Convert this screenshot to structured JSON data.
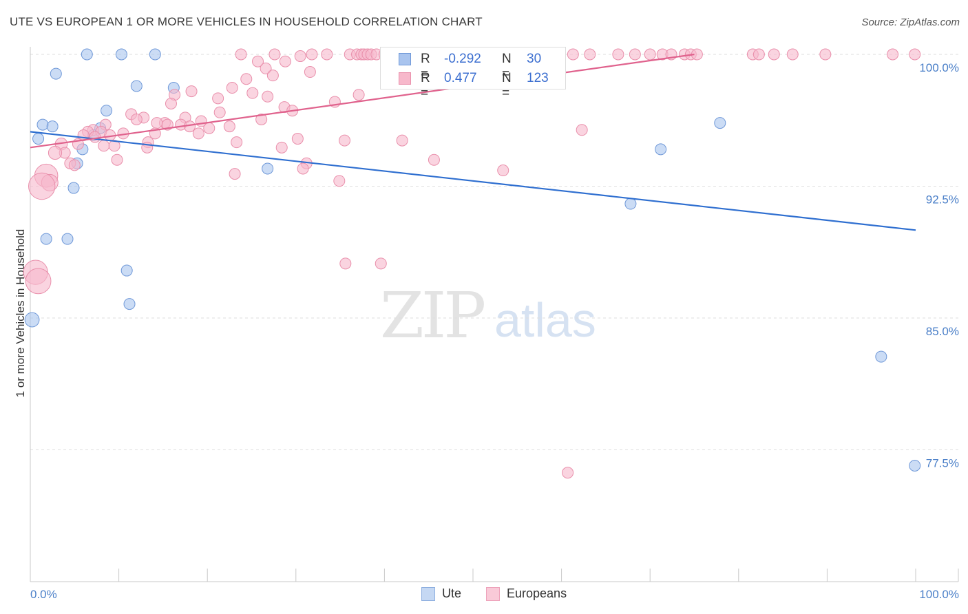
{
  "title": "UTE VS EUROPEAN 1 OR MORE VEHICLES IN HOUSEHOLD CORRELATION CHART",
  "source": "Source: ZipAtlas.com",
  "watermark": {
    "part1": "ZIP",
    "part2": "atlas"
  },
  "legend": {
    "rows": [
      {
        "r_label": "R =",
        "r_value": "-0.292",
        "n_label": "N =",
        "n_value": "30",
        "fill": "#a9c4ee",
        "stroke": "#6f98d8"
      },
      {
        "r_label": "R =",
        "r_value": "0.477",
        "n_label": "N =",
        "n_value": "123",
        "fill": "#f7b8cb",
        "stroke": "#e98fab"
      }
    ]
  },
  "bottom_legend": [
    {
      "label": "Ute",
      "fill": "#c5d8f3",
      "stroke": "#8fb0e0"
    },
    {
      "label": "Europeans",
      "fill": "#f9cad8",
      "stroke": "#eea3bb"
    }
  ],
  "chart_data": {
    "type": "scatter",
    "title": "UTE VS EUROPEAN 1 OR MORE VEHICLES IN HOUSEHOLD CORRELATION CHART",
    "xlabel": "",
    "ylabel": "1 or more Vehicles in Household",
    "xlim": [
      0,
      100
    ],
    "ylim": [
      70,
      100.6
    ],
    "x_tick_labels": [
      "0.0%",
      "100.0%"
    ],
    "y_ticks": [
      {
        "value": 100.0,
        "label": "100.0%"
      },
      {
        "value": 92.5,
        "label": "92.5%"
      },
      {
        "value": 85.0,
        "label": "85.0%"
      },
      {
        "value": 77.5,
        "label": "77.5%"
      }
    ],
    "grid": true,
    "legend_position": "top-center",
    "series": [
      {
        "name": "Ute",
        "fill": "#a9c4ee",
        "stroke": "#6f98d8",
        "trend": {
          "x": [
            0,
            100
          ],
          "y": [
            95.6,
            90.0
          ],
          "color": "#2f6fd0"
        },
        "points": [
          {
            "x": 6.4,
            "y": 100.0,
            "s": 1
          },
          {
            "x": 10.3,
            "y": 100.0,
            "s": 1
          },
          {
            "x": 14.1,
            "y": 100.0,
            "s": 1
          },
          {
            "x": 2.9,
            "y": 98.9,
            "s": 1
          },
          {
            "x": 12.0,
            "y": 98.2,
            "s": 1
          },
          {
            "x": 16.2,
            "y": 98.1,
            "s": 1
          },
          {
            "x": 8.6,
            "y": 96.8,
            "s": 1
          },
          {
            "x": 1.4,
            "y": 96.0,
            "s": 1
          },
          {
            "x": 2.5,
            "y": 95.9,
            "s": 1
          },
          {
            "x": 7.9,
            "y": 95.8,
            "s": 1
          },
          {
            "x": 7.1,
            "y": 95.4,
            "s": 1
          },
          {
            "x": 0.9,
            "y": 95.2,
            "s": 1
          },
          {
            "x": 5.9,
            "y": 94.6,
            "s": 1
          },
          {
            "x": 5.3,
            "y": 93.8,
            "s": 1
          },
          {
            "x": 26.8,
            "y": 93.5,
            "s": 1
          },
          {
            "x": 4.9,
            "y": 92.4,
            "s": 1
          },
          {
            "x": 1.8,
            "y": 89.5,
            "s": 1
          },
          {
            "x": 4.2,
            "y": 89.5,
            "s": 1
          },
          {
            "x": 10.9,
            "y": 87.7,
            "s": 1
          },
          {
            "x": 11.2,
            "y": 85.8,
            "s": 1
          },
          {
            "x": 0.2,
            "y": 84.9,
            "s": 1.3
          },
          {
            "x": 77.9,
            "y": 96.1,
            "s": 1
          },
          {
            "x": 71.2,
            "y": 94.6,
            "s": 1
          },
          {
            "x": 67.8,
            "y": 91.5,
            "s": 1
          },
          {
            "x": 96.1,
            "y": 82.8,
            "s": 1
          },
          {
            "x": 99.9,
            "y": 76.6,
            "s": 1
          }
        ]
      },
      {
        "name": "Europeans",
        "fill": "#f7b8cb",
        "stroke": "#e98fab",
        "trend": {
          "x": [
            0,
            75
          ],
          "y": [
            94.7,
            100.0
          ],
          "color": "#e0628d"
        },
        "points": [
          {
            "x": 23.8,
            "y": 100.0,
            "s": 1
          },
          {
            "x": 27.6,
            "y": 100.0,
            "s": 1
          },
          {
            "x": 30.5,
            "y": 99.9,
            "s": 1
          },
          {
            "x": 31.8,
            "y": 100.0,
            "s": 1
          },
          {
            "x": 33.5,
            "y": 100.0,
            "s": 1
          },
          {
            "x": 36.1,
            "y": 100.0,
            "s": 1
          },
          {
            "x": 36.9,
            "y": 100.0,
            "s": 1
          },
          {
            "x": 37.4,
            "y": 100.0,
            "s": 1
          },
          {
            "x": 37.7,
            "y": 100.0,
            "s": 1
          },
          {
            "x": 38.1,
            "y": 100.0,
            "s": 1
          },
          {
            "x": 38.5,
            "y": 100.0,
            "s": 1
          },
          {
            "x": 39.1,
            "y": 100.0,
            "s": 1
          },
          {
            "x": 40.0,
            "y": 100.0,
            "s": 1
          },
          {
            "x": 40.5,
            "y": 100.0,
            "s": 1
          },
          {
            "x": 41.3,
            "y": 100.0,
            "s": 1
          },
          {
            "x": 42.0,
            "y": 100.0,
            "s": 1
          },
          {
            "x": 43.8,
            "y": 100.0,
            "s": 1
          },
          {
            "x": 44.6,
            "y": 100.0,
            "s": 1
          },
          {
            "x": 46.2,
            "y": 100.0,
            "s": 1
          },
          {
            "x": 47.2,
            "y": 100.0,
            "s": 1
          },
          {
            "x": 48.0,
            "y": 100.0,
            "s": 1
          },
          {
            "x": 48.7,
            "y": 100.0,
            "s": 1
          },
          {
            "x": 50.2,
            "y": 100.0,
            "s": 1
          },
          {
            "x": 51.1,
            "y": 100.0,
            "s": 1
          },
          {
            "x": 52.9,
            "y": 100.0,
            "s": 1
          },
          {
            "x": 54.3,
            "y": 100.0,
            "s": 1
          },
          {
            "x": 56.5,
            "y": 100.0,
            "s": 1
          },
          {
            "x": 58.9,
            "y": 100.0,
            "s": 1
          },
          {
            "x": 61.3,
            "y": 100.0,
            "s": 1
          },
          {
            "x": 63.2,
            "y": 100.0,
            "s": 1
          },
          {
            "x": 66.4,
            "y": 100.0,
            "s": 1
          },
          {
            "x": 68.3,
            "y": 100.0,
            "s": 1
          },
          {
            "x": 70.0,
            "y": 100.0,
            "s": 1
          },
          {
            "x": 71.4,
            "y": 100.0,
            "s": 1
          },
          {
            "x": 72.4,
            "y": 100.0,
            "s": 1
          },
          {
            "x": 73.9,
            "y": 100.0,
            "s": 1
          },
          {
            "x": 74.6,
            "y": 100.0,
            "s": 1
          },
          {
            "x": 75.3,
            "y": 100.0,
            "s": 1
          },
          {
            "x": 81.6,
            "y": 100.0,
            "s": 1
          },
          {
            "x": 82.3,
            "y": 100.0,
            "s": 1
          },
          {
            "x": 84.0,
            "y": 100.0,
            "s": 1
          },
          {
            "x": 86.1,
            "y": 100.0,
            "s": 1
          },
          {
            "x": 89.8,
            "y": 100.0,
            "s": 1
          },
          {
            "x": 97.4,
            "y": 100.0,
            "s": 1
          },
          {
            "x": 99.9,
            "y": 100.0,
            "s": 1
          },
          {
            "x": 28.8,
            "y": 99.6,
            "s": 1
          },
          {
            "x": 25.7,
            "y": 99.6,
            "s": 1
          },
          {
            "x": 26.6,
            "y": 99.2,
            "s": 1
          },
          {
            "x": 31.6,
            "y": 99.0,
            "s": 1
          },
          {
            "x": 27.4,
            "y": 98.8,
            "s": 1
          },
          {
            "x": 24.4,
            "y": 98.6,
            "s": 1
          },
          {
            "x": 22.8,
            "y": 98.1,
            "s": 1
          },
          {
            "x": 18.2,
            "y": 97.9,
            "s": 1
          },
          {
            "x": 25.1,
            "y": 97.8,
            "s": 1
          },
          {
            "x": 21.2,
            "y": 97.5,
            "s": 1
          },
          {
            "x": 16.3,
            "y": 97.7,
            "s": 1
          },
          {
            "x": 26.8,
            "y": 97.6,
            "s": 1
          },
          {
            "x": 37.1,
            "y": 97.7,
            "s": 1
          },
          {
            "x": 34.4,
            "y": 97.3,
            "s": 1
          },
          {
            "x": 15.9,
            "y": 97.2,
            "s": 1
          },
          {
            "x": 28.7,
            "y": 97.0,
            "s": 1
          },
          {
            "x": 29.6,
            "y": 96.8,
            "s": 1
          },
          {
            "x": 21.4,
            "y": 96.7,
            "s": 1
          },
          {
            "x": 11.4,
            "y": 96.6,
            "s": 1
          },
          {
            "x": 12.8,
            "y": 96.4,
            "s": 1
          },
          {
            "x": 17.5,
            "y": 96.4,
            "s": 1
          },
          {
            "x": 12.0,
            "y": 96.3,
            "s": 1
          },
          {
            "x": 19.3,
            "y": 96.2,
            "s": 1
          },
          {
            "x": 26.1,
            "y": 96.3,
            "s": 1
          },
          {
            "x": 15.2,
            "y": 96.1,
            "s": 1
          },
          {
            "x": 14.3,
            "y": 96.1,
            "s": 1
          },
          {
            "x": 17.0,
            "y": 96.0,
            "s": 1
          },
          {
            "x": 8.5,
            "y": 96.0,
            "s": 1
          },
          {
            "x": 15.5,
            "y": 96.0,
            "s": 1
          },
          {
            "x": 18.0,
            "y": 95.9,
            "s": 1
          },
          {
            "x": 20.2,
            "y": 95.8,
            "s": 1
          },
          {
            "x": 22.5,
            "y": 95.9,
            "s": 1
          },
          {
            "x": 7.1,
            "y": 95.7,
            "s": 1
          },
          {
            "x": 8.0,
            "y": 95.6,
            "s": 1
          },
          {
            "x": 6.5,
            "y": 95.6,
            "s": 1
          },
          {
            "x": 10.5,
            "y": 95.5,
            "s": 1
          },
          {
            "x": 14.1,
            "y": 95.5,
            "s": 1
          },
          {
            "x": 19.0,
            "y": 95.5,
            "s": 1
          },
          {
            "x": 6.0,
            "y": 95.4,
            "s": 1
          },
          {
            "x": 7.3,
            "y": 95.3,
            "s": 1
          },
          {
            "x": 9.0,
            "y": 95.4,
            "s": 1
          },
          {
            "x": 30.2,
            "y": 95.2,
            "s": 1
          },
          {
            "x": 13.3,
            "y": 95.0,
            "s": 1
          },
          {
            "x": 23.3,
            "y": 95.0,
            "s": 1
          },
          {
            "x": 3.5,
            "y": 94.9,
            "s": 1.1
          },
          {
            "x": 8.3,
            "y": 94.8,
            "s": 1
          },
          {
            "x": 9.5,
            "y": 94.8,
            "s": 1
          },
          {
            "x": 5.4,
            "y": 94.9,
            "s": 1
          },
          {
            "x": 28.4,
            "y": 94.7,
            "s": 1
          },
          {
            "x": 13.2,
            "y": 94.7,
            "s": 1
          },
          {
            "x": 3.9,
            "y": 94.4,
            "s": 1
          },
          {
            "x": 2.8,
            "y": 94.4,
            "s": 1.2
          },
          {
            "x": 9.8,
            "y": 94.0,
            "s": 1
          },
          {
            "x": 45.6,
            "y": 94.0,
            "s": 1
          },
          {
            "x": 35.5,
            "y": 95.1,
            "s": 1
          },
          {
            "x": 42.0,
            "y": 95.1,
            "s": 1
          },
          {
            "x": 4.5,
            "y": 93.8,
            "s": 1
          },
          {
            "x": 5.0,
            "y": 93.7,
            "s": 1
          },
          {
            "x": 31.2,
            "y": 93.8,
            "s": 1
          },
          {
            "x": 30.8,
            "y": 93.5,
            "s": 1
          },
          {
            "x": 23.1,
            "y": 93.2,
            "s": 1
          },
          {
            "x": 53.4,
            "y": 93.4,
            "s": 1
          },
          {
            "x": 34.9,
            "y": 92.8,
            "s": 1
          },
          {
            "x": 1.8,
            "y": 93.1,
            "s": 2.1
          },
          {
            "x": 2.2,
            "y": 92.7,
            "s": 1.5
          },
          {
            "x": 1.3,
            "y": 92.5,
            "s": 2.4
          },
          {
            "x": 35.6,
            "y": 88.1,
            "s": 1
          },
          {
            "x": 39.6,
            "y": 88.1,
            "s": 1
          },
          {
            "x": 62.3,
            "y": 95.7,
            "s": 1
          },
          {
            "x": 60.7,
            "y": 76.2,
            "s": 1
          },
          {
            "x": 0.6,
            "y": 87.6,
            "s": 2.2
          },
          {
            "x": 0.9,
            "y": 87.1,
            "s": 2.3
          },
          {
            "x": 59.2,
            "y": 99.3,
            "s": 1
          },
          {
            "x": 44.1,
            "y": 99.2,
            "s": 1
          }
        ]
      }
    ]
  }
}
